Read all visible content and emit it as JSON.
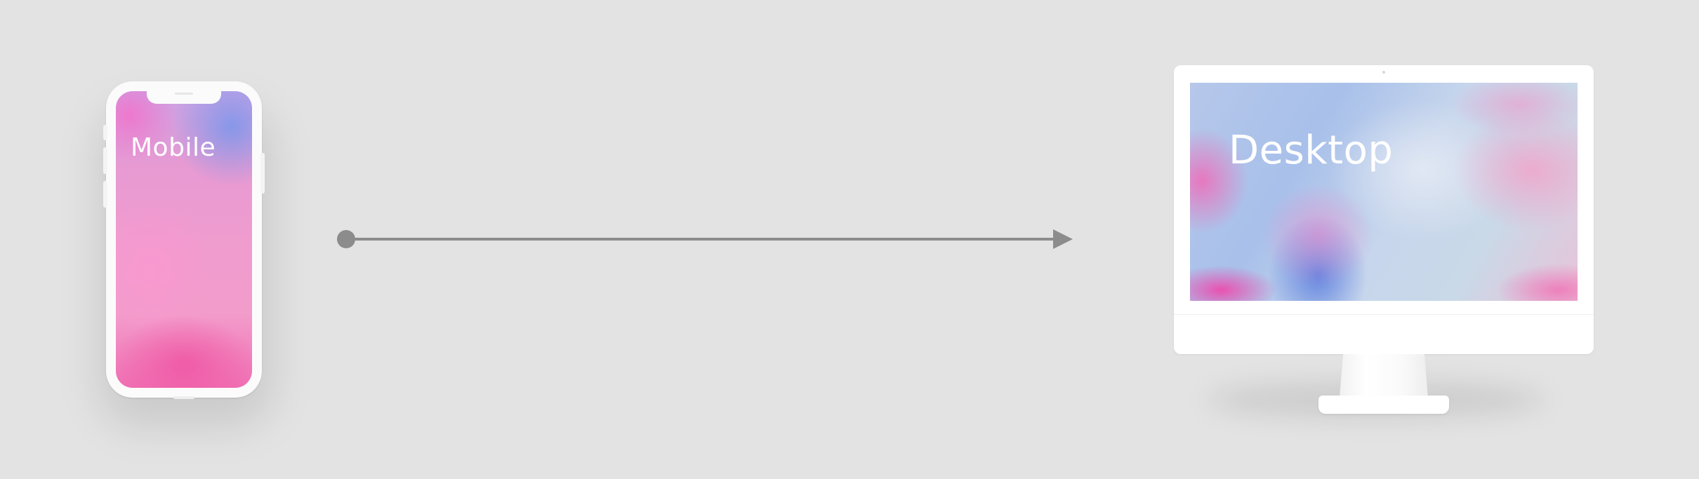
{
  "diagram": {
    "source": {
      "device": "mobile",
      "label": "Mobile"
    },
    "target": {
      "device": "desktop",
      "label": "Desktop"
    },
    "connector": {
      "type": "arrow",
      "direction": "left-to-right",
      "color": "#8c8c8c"
    }
  },
  "colors": {
    "background": "#e3e3e3",
    "device_frame": "#ffffff",
    "label_text": "#ffffff",
    "arrow": "#8c8c8c"
  }
}
